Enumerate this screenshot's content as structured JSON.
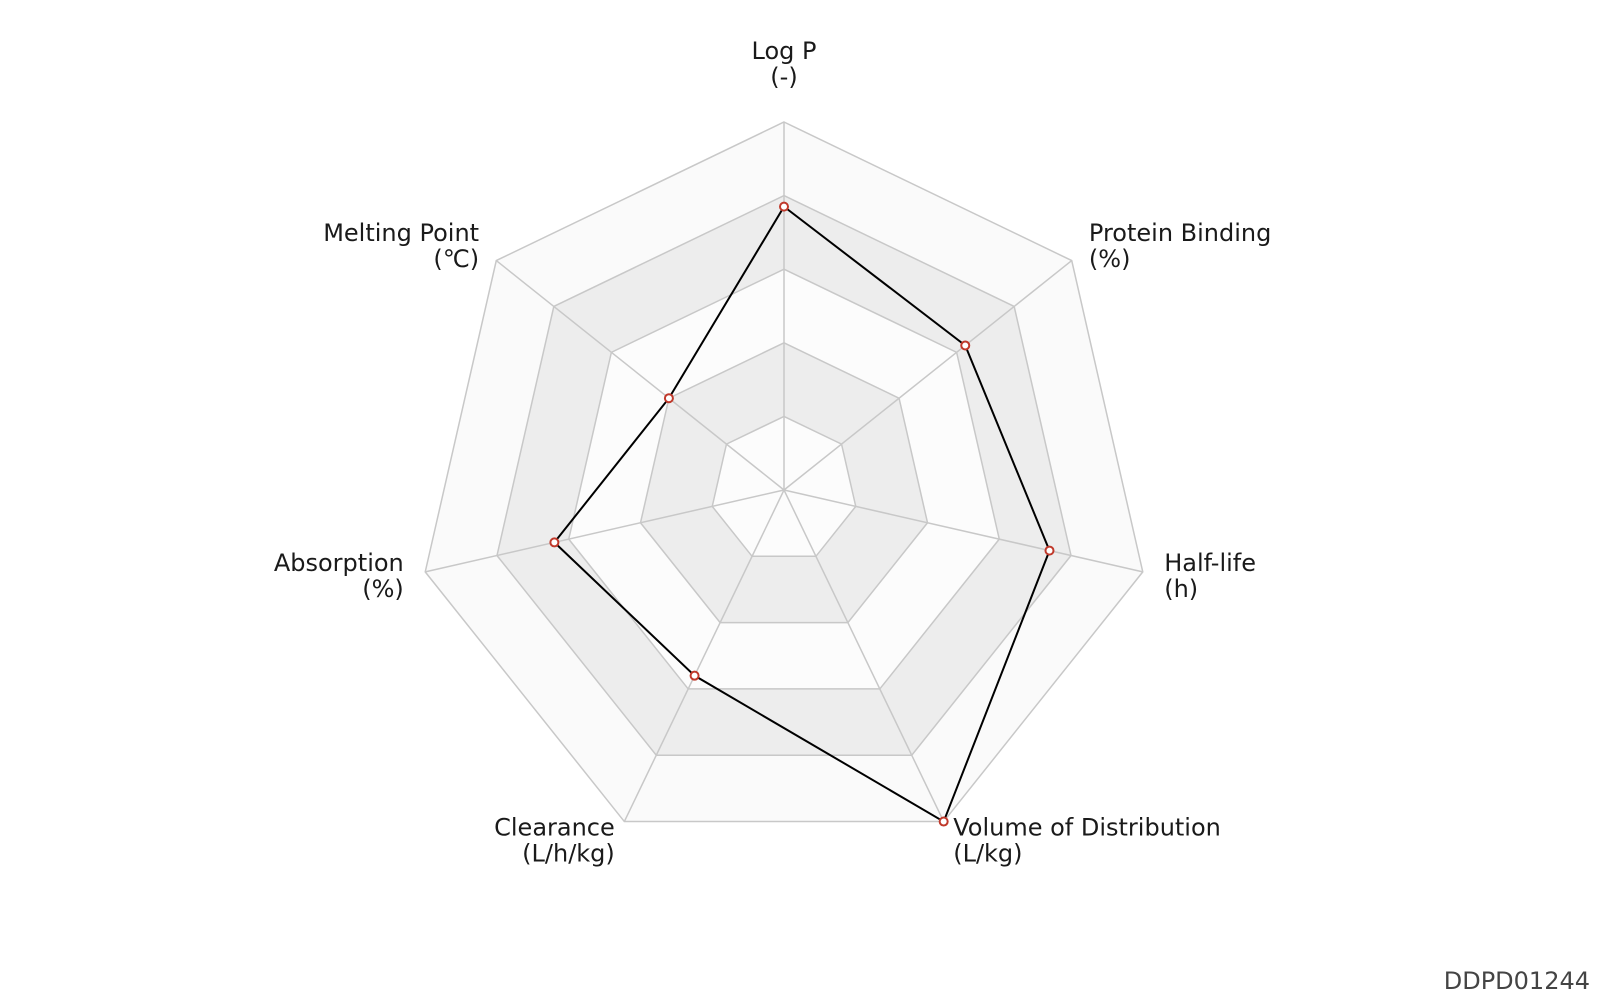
{
  "chart_data": {
    "type": "radar",
    "categories": [
      "Log P",
      "Protein Binding",
      "Half-life",
      "Volume of Distribution",
      "Clearance",
      "Absorption",
      "Melting Point"
    ],
    "units": [
      "(-)",
      "(%)",
      "(h)",
      "(L/kg)",
      "(L/h/kg)",
      "(%)",
      "(℃)"
    ],
    "series": [
      {
        "color": "#000000",
        "marker_color": "#c0392b",
        "values": [
          0.77,
          0.63,
          0.74,
          1.0,
          0.56,
          0.64,
          0.4
        ]
      }
    ],
    "rlim": [
      0,
      1
    ],
    "rticks": [
      0.2,
      0.4,
      0.6,
      0.8,
      1.0
    ],
    "grid": true,
    "watermark": "DDPD01244"
  }
}
